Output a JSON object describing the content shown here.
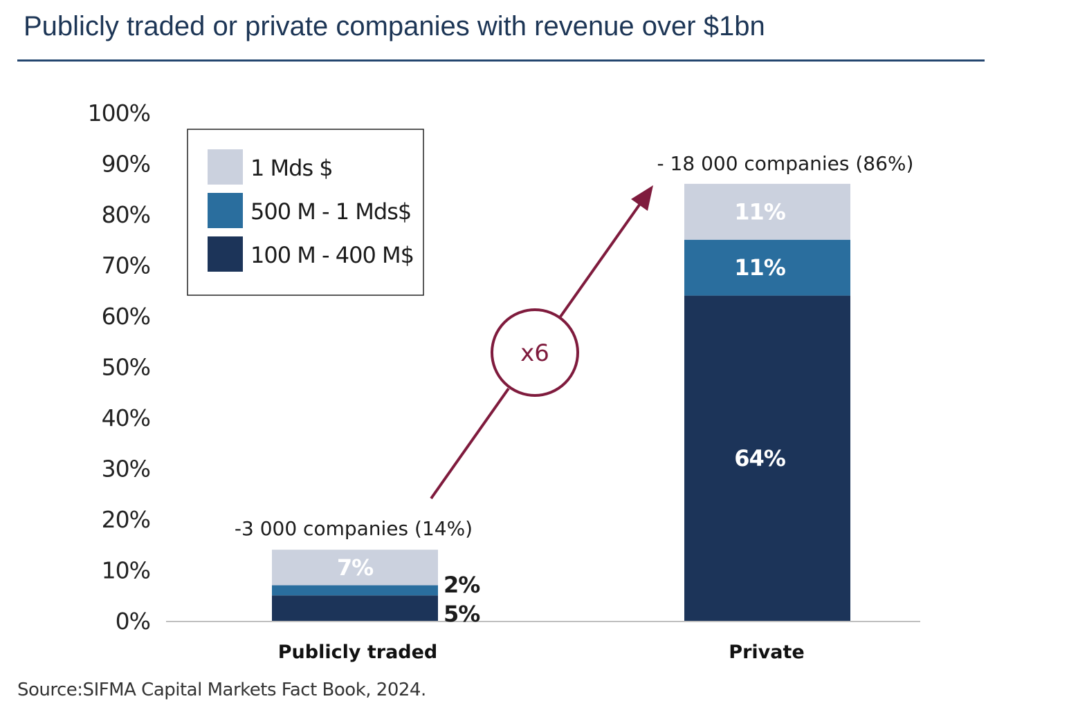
{
  "title": "Publicly traded or private companies with revenue over $1bn",
  "source": "Source:SIFMA Capital Markets Fact Book, 2024.",
  "colors": {
    "title": "#1d3656",
    "seg_1bn": "#cbd1de",
    "seg_500m_1bn": "#2a6e9e",
    "seg_100m_400m": "#1c3459",
    "arrow": "#7f1b3d"
  },
  "chart_data": {
    "type": "bar",
    "stacked": true,
    "title": "",
    "xlabel": "",
    "ylabel": "",
    "ylim": [
      0,
      100
    ],
    "yticks": [
      "0%",
      "10%",
      "20%",
      "30%",
      "40%",
      "50%",
      "60%",
      "70%",
      "80%",
      "90%",
      "100%"
    ],
    "grid": false,
    "legend_position": "top-left",
    "categories": [
      "Publicly traded",
      "Private"
    ],
    "series": [
      {
        "name": "100 M - 400 M$",
        "values": [
          5,
          64
        ],
        "labels": [
          "5%",
          "64%"
        ],
        "color": "#1c3459"
      },
      {
        "name": "500 M - 1 Mds$",
        "values": [
          2,
          11
        ],
        "labels": [
          "2%",
          "11%"
        ],
        "color": "#2a6e9e"
      },
      {
        "name": "1 Mds $",
        "values": [
          7,
          11
        ],
        "labels": [
          "7%",
          "11%"
        ],
        "color": "#cbd1de"
      }
    ],
    "legend_order": [
      "1 Mds $",
      "500 M - 1 Mds$",
      "100 M - 400 M$"
    ],
    "totals": [
      14,
      86
    ],
    "bar_annotations": [
      "-3 000 companies (14%)",
      "- 18 000 companies (86%)"
    ],
    "arrow_label": "x6"
  }
}
